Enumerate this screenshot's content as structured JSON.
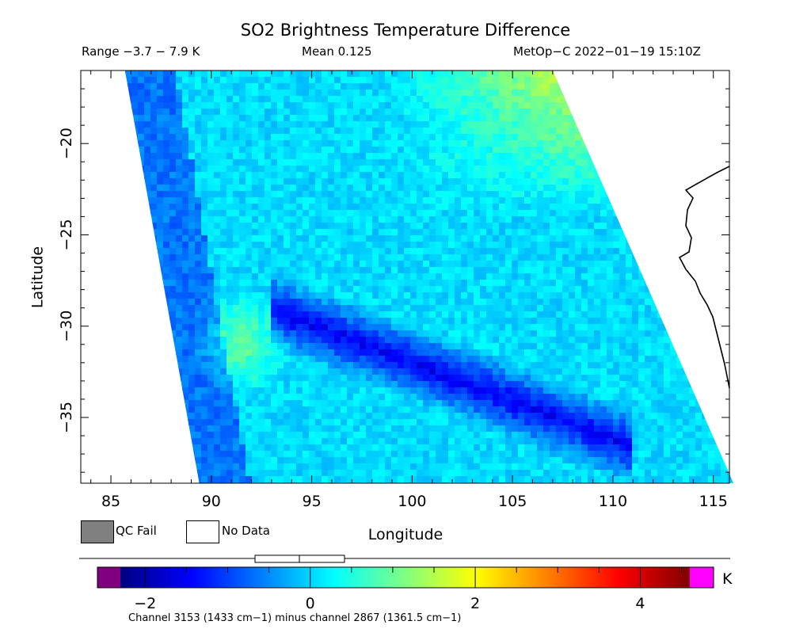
{
  "chart_data": {
    "type": "heatmap",
    "title": "SO2 Brightness Temperature Difference",
    "range_text": "Range −3.7 − 7.9 K",
    "mean_text": "Mean 0.125",
    "satellite_text": "MetOp−C 2022−01−19 15:10Z",
    "xlabel": "Longitude",
    "ylabel": "Latitude",
    "xlim": [
      83.5,
      115.8
    ],
    "ylim": [
      -38.6,
      -16
    ],
    "x_ticks": [
      85,
      90,
      95,
      100,
      105,
      110,
      115
    ],
    "y_ticks": [
      -20,
      -25,
      -30,
      -35
    ],
    "x_tick_labels": [
      "85",
      "90",
      "95",
      "100",
      "105",
      "110",
      "115"
    ],
    "y_tick_labels": [
      "−20",
      "−25",
      "−30",
      "−35"
    ],
    "swath_edges": {
      "west": [
        [
          85.7,
          -16
        ],
        [
          89.4,
          -38.6
        ]
      ],
      "east": [
        [
          107.0,
          -16
        ],
        [
          116.0,
          -38.6
        ]
      ]
    },
    "colorbar": {
      "min": -2.3,
      "max": 4.6,
      "ticks": [
        -2,
        0,
        2,
        4
      ],
      "tick_labels": [
        "−2",
        "0",
        "2",
        "4"
      ],
      "unit": "K",
      "under_color": "#800080",
      "over_color": "#ff00ff",
      "colors": [
        "#000080",
        "#0000ff",
        "#0080ff",
        "#00ffff",
        "#80ff80",
        "#ffff00",
        "#ff8000",
        "#ff0000",
        "#800000"
      ]
    },
    "legend": {
      "qc_fail_label": "QC Fail",
      "qc_fail_color": "#808080",
      "no_data_label": "No Data",
      "no_data_color": "#ffffff"
    },
    "footnote": "Channel 3153 (1433 cm−1) minus channel 2867 (1361.5 cm−1)"
  }
}
